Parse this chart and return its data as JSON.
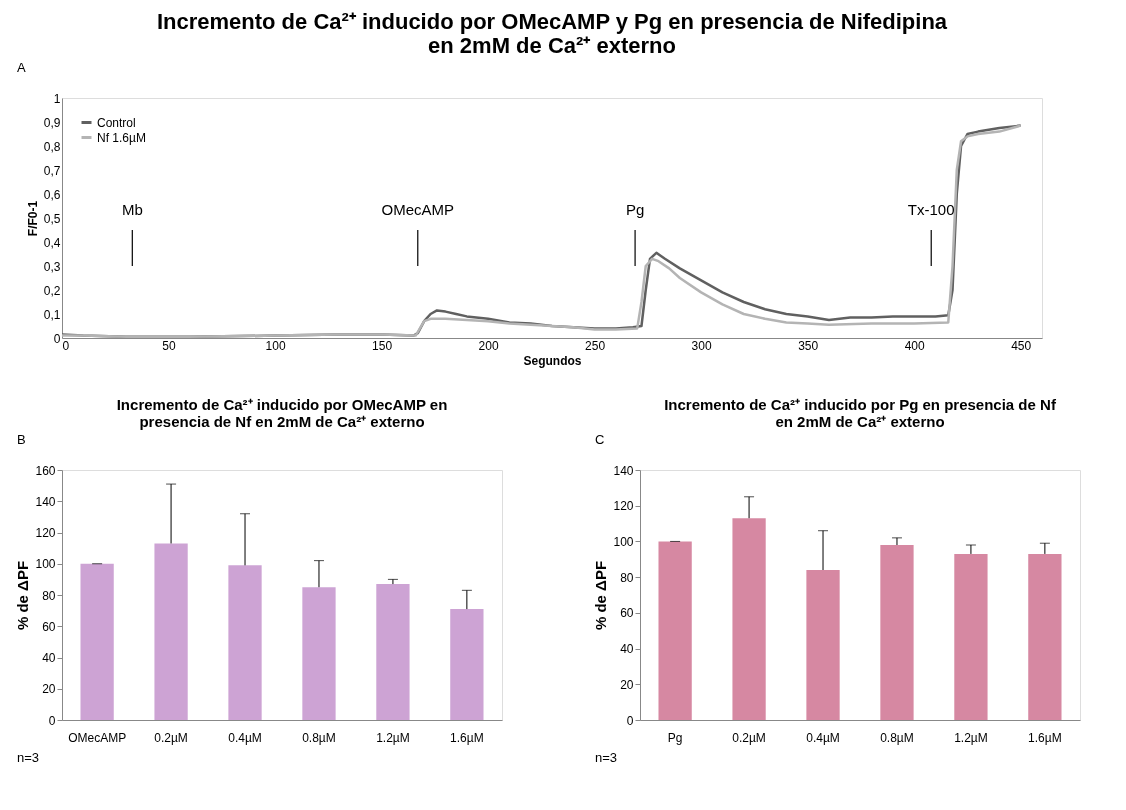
{
  "chart_data": [
    {
      "type": "line",
      "title": "Incremento de Ca²⁺ inducido por OMecAMP y Pg en presencia de Nifedipina\nen 2mM de Ca²⁺ externo",
      "xlabel": "Segundos",
      "ylabel": "F/F0-1",
      "xlim": [
        0,
        460
      ],
      "xticks": [
        0,
        50,
        100,
        150,
        200,
        250,
        300,
        350,
        400,
        450
      ],
      "ylim": [
        0,
        1
      ],
      "yticks": [
        0,
        {
          "value": 0.1,
          "label": "0,1"
        },
        {
          "value": 0.2,
          "label": "0,2"
        },
        {
          "value": 0.3,
          "label": "0,3"
        },
        {
          "value": 0.4,
          "label": "0,4"
        },
        {
          "value": 0.5,
          "label": "0,5"
        },
        {
          "value": 0.6,
          "label": "0,6"
        },
        {
          "value": 0.7,
          "label": "0,7"
        },
        {
          "value": 0.8,
          "label": "0,8"
        },
        {
          "value": 0.9,
          "label": "0,9"
        },
        1
      ],
      "grid": false,
      "legend": "top left",
      "marker": "none",
      "line_style": "solid",
      "series": [
        {
          "name": "Control",
          "color": "#606060",
          "x": [
            0,
            10,
            30,
            60,
            100,
            130,
            150,
            165,
            167,
            170,
            173,
            176,
            180,
            185,
            190,
            200,
            210,
            220,
            230,
            240,
            250,
            260,
            268,
            272,
            274,
            276,
            279,
            283,
            290,
            300,
            310,
            320,
            330,
            340,
            350,
            360,
            370,
            380,
            390,
            400,
            410,
            416,
            418,
            420,
            422,
            425,
            430,
            440,
            450
          ],
          "values": [
            0.015,
            0.01,
            0.005,
            0.005,
            0.01,
            0.015,
            0.015,
            0.01,
            0.02,
            0.07,
            0.1,
            0.115,
            0.11,
            0.1,
            0.09,
            0.08,
            0.065,
            0.06,
            0.05,
            0.045,
            0.04,
            0.04,
            0.045,
            0.05,
            0.2,
            0.33,
            0.355,
            0.33,
            0.29,
            0.24,
            0.19,
            0.15,
            0.12,
            0.1,
            0.09,
            0.075,
            0.085,
            0.085,
            0.09,
            0.09,
            0.09,
            0.095,
            0.2,
            0.6,
            0.8,
            0.85,
            0.86,
            0.875,
            0.885
          ]
        },
        {
          "name": "Nf 1.6µM",
          "color": "#b4b4b4",
          "x": [
            0,
            10,
            30,
            60,
            100,
            130,
            150,
            166,
            168,
            170,
            173,
            180,
            190,
            200,
            210,
            220,
            230,
            240,
            250,
            260,
            270,
            272,
            274,
            277,
            280,
            285,
            290,
            300,
            310,
            320,
            330,
            340,
            350,
            360,
            380,
            400,
            416,
            418,
            420,
            422,
            425,
            430,
            440,
            450
          ],
          "values": [
            0.01,
            0.01,
            0.005,
            0.005,
            0.01,
            0.015,
            0.015,
            0.01,
            0.04,
            0.07,
            0.08,
            0.08,
            0.075,
            0.07,
            0.06,
            0.055,
            0.05,
            0.045,
            0.035,
            0.035,
            0.04,
            0.15,
            0.3,
            0.33,
            0.32,
            0.29,
            0.25,
            0.19,
            0.14,
            0.1,
            0.08,
            0.065,
            0.06,
            0.055,
            0.06,
            0.06,
            0.065,
            0.3,
            0.7,
            0.82,
            0.84,
            0.85,
            0.86,
            0.885
          ]
        }
      ],
      "annotations": [
        "A"
      ],
      "ref_lines": [
        {
          "axis": "x",
          "value": 33,
          "label": "Mb"
        },
        {
          "axis": "x",
          "value": 167,
          "label": "OMecAMP"
        },
        {
          "axis": "x",
          "value": 269,
          "label": "Pg"
        },
        {
          "axis": "x",
          "value": 408,
          "label": "Tx-100"
        }
      ]
    },
    {
      "type": "bar",
      "title": "Incremento de Ca²⁺ inducido por OMecAMP en\npresencia de Nf en 2mM de Ca²⁺ externo",
      "ylabel": "% de ΔPF",
      "categories": [
        "OMecAMP",
        "0.2µM",
        "0.4µM",
        "0.8µM",
        "1.2µM",
        "1.6µM"
      ],
      "values": [
        100,
        113,
        99,
        85,
        87,
        71
      ],
      "errors": [
        [
          100,
          100
        ],
        [
          113,
          151
        ],
        [
          99,
          132
        ],
        [
          85,
          102
        ],
        [
          87,
          90
        ],
        [
          71,
          83
        ]
      ],
      "color": "#cda3d4",
      "ylim": [
        0,
        160
      ],
      "yticks": [
        0,
        20,
        40,
        60,
        80,
        100,
        120,
        140,
        160
      ],
      "grid": false,
      "annotations": [
        "B",
        "n=3"
      ]
    },
    {
      "type": "bar",
      "title": "Incremento de Ca²⁺ inducido por Pg en presencia de Nf\nen 2mM de Ca²⁺ externo",
      "ylabel": "% de ΔPF",
      "categories": [
        "Pg",
        "0.2µM",
        "0.4µM",
        "0.8µM",
        "1.2µM",
        "1.6µM"
      ],
      "values": [
        100,
        113,
        84,
        98,
        93,
        93
      ],
      "errors": [
        [
          100,
          100
        ],
        [
          113,
          125
        ],
        [
          84,
          106
        ],
        [
          98,
          102
        ],
        [
          93,
          98
        ],
        [
          93,
          99
        ]
      ],
      "color": "#d688a2",
      "ylim": [
        0,
        140
      ],
      "yticks": [
        0,
        20,
        40,
        60,
        80,
        100,
        120,
        140
      ],
      "grid": false,
      "annotations": [
        "C",
        "n=3"
      ]
    }
  ]
}
